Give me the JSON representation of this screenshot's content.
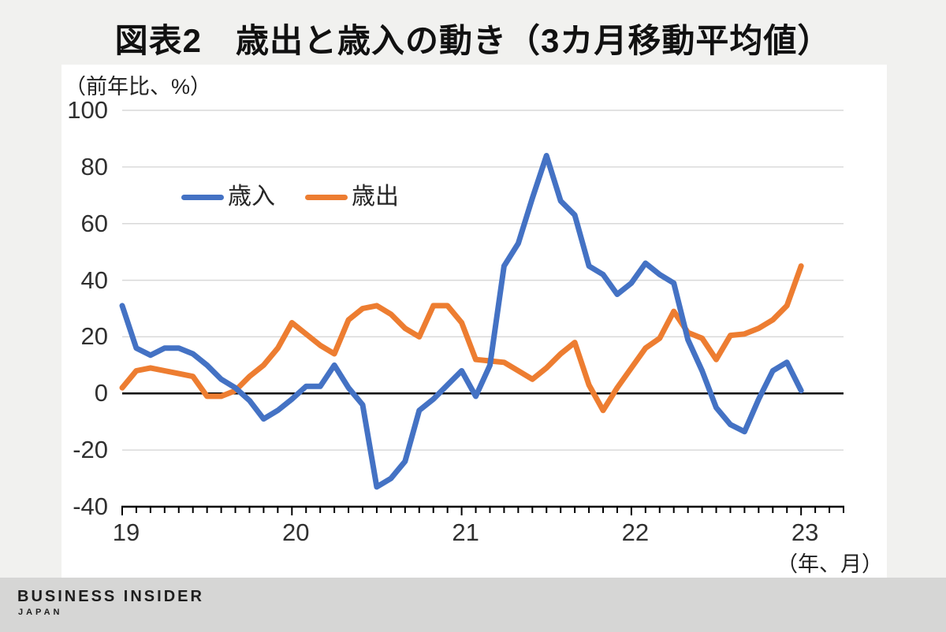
{
  "title": "図表2　歳出と歳入の動き（3カ月移動平均値）",
  "y_axis_unit": "（前年比、%）",
  "x_axis_unit": "（年、月）",
  "legend": [
    {
      "label": "歳入",
      "color": "#4472c4"
    },
    {
      "label": "歳出",
      "color": "#ed7d31"
    }
  ],
  "footer": {
    "brand": "BUSINESS INSIDER",
    "sub": "JAPAN"
  },
  "colors": {
    "page_bg": "#f1f1ef",
    "card_bg": "#ffffff",
    "footer_bg": "#d6d6d5",
    "gridline": "#d9d9d9",
    "axis": "#000000",
    "revenue_line": "#4472c4",
    "spending_line": "#ed7d31"
  },
  "chart_data": {
    "type": "line",
    "title": "図表2　歳出と歳入の動き（3カ月移動平均値）",
    "ylabel": "（前年比、%）",
    "xlabel": "（年、月）",
    "frequency": "monthly",
    "x_start": "2019-01",
    "x_end": "2023-01",
    "x_tick_labels": [
      "19",
      "20",
      "21",
      "22",
      "23"
    ],
    "x_axis_total_months": 51,
    "y_ticks": [
      100,
      80,
      60,
      40,
      20,
      0,
      -20,
      -40
    ],
    "ylim": [
      -40,
      100
    ],
    "grid": "horizontal",
    "legend_position": "upper-left-inside",
    "series": [
      {
        "name": "歳入",
        "color": "#4472c4",
        "values": [
          31,
          16,
          13.5,
          16,
          16,
          14,
          10,
          5,
          2,
          -2.5,
          -9,
          -6,
          -2,
          2.5,
          2.5,
          10,
          2,
          -4,
          -33,
          -30,
          -24,
          -6,
          -2,
          3,
          8,
          -1,
          10,
          45,
          53,
          69,
          84,
          68,
          63,
          45,
          42,
          35,
          39,
          46,
          42,
          39,
          19,
          8,
          -5,
          -11,
          -13.5,
          -2,
          8,
          11,
          1
        ]
      },
      {
        "name": "歳出",
        "color": "#ed7d31",
        "values": [
          2,
          8,
          9,
          8,
          7,
          6,
          -1,
          -1,
          1,
          6,
          10,
          16,
          25,
          21,
          17,
          14,
          26,
          30,
          31,
          28,
          23,
          20,
          31,
          31,
          25,
          12,
          11.5,
          11,
          8,
          5,
          9,
          14,
          18,
          3,
          -6,
          2,
          9,
          16,
          19.5,
          29,
          21.5,
          19.5,
          12,
          20.5,
          21,
          23,
          26,
          31,
          45
        ]
      }
    ]
  }
}
